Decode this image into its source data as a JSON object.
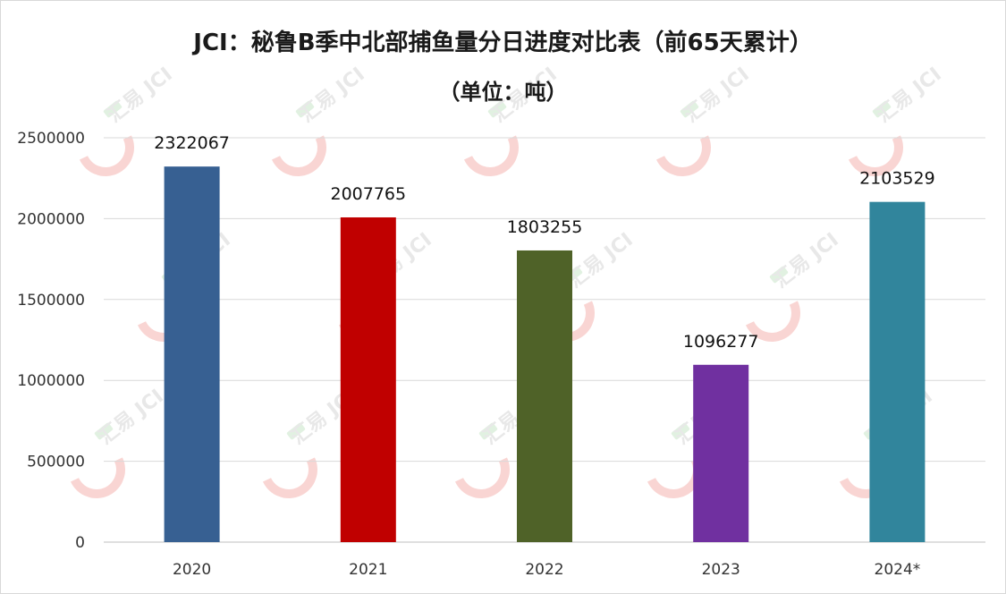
{
  "chart_data": {
    "type": "bar",
    "title": "JCI：秘鲁B季中北部捕鱼量分日进度对比表（前65天累计）",
    "subtitle": "（单位：吨）",
    "categories": [
      "2020",
      "2021",
      "2022",
      "2023",
      "2024*"
    ],
    "values": [
      2322067,
      2007765,
      1803255,
      1096277,
      2103529
    ],
    "data_labels": [
      "2322067",
      "2007765",
      "1803255",
      "1096277",
      "2103529"
    ],
    "colors": [
      "#376092",
      "#c00000",
      "#4f6228",
      "#7030a0",
      "#31859c"
    ],
    "ylim": [
      0,
      2500000
    ],
    "yticks": [
      0,
      500000,
      1000000,
      1500000,
      2000000,
      2500000
    ],
    "ytick_labels": [
      "0",
      "500000",
      "1000000",
      "1500000",
      "2000000",
      "2500000"
    ],
    "xlabel": "",
    "ylabel": "",
    "grid": true,
    "legend": "none"
  },
  "watermark": {
    "brand_text": "汇易",
    "brand_sub": "JCI"
  }
}
